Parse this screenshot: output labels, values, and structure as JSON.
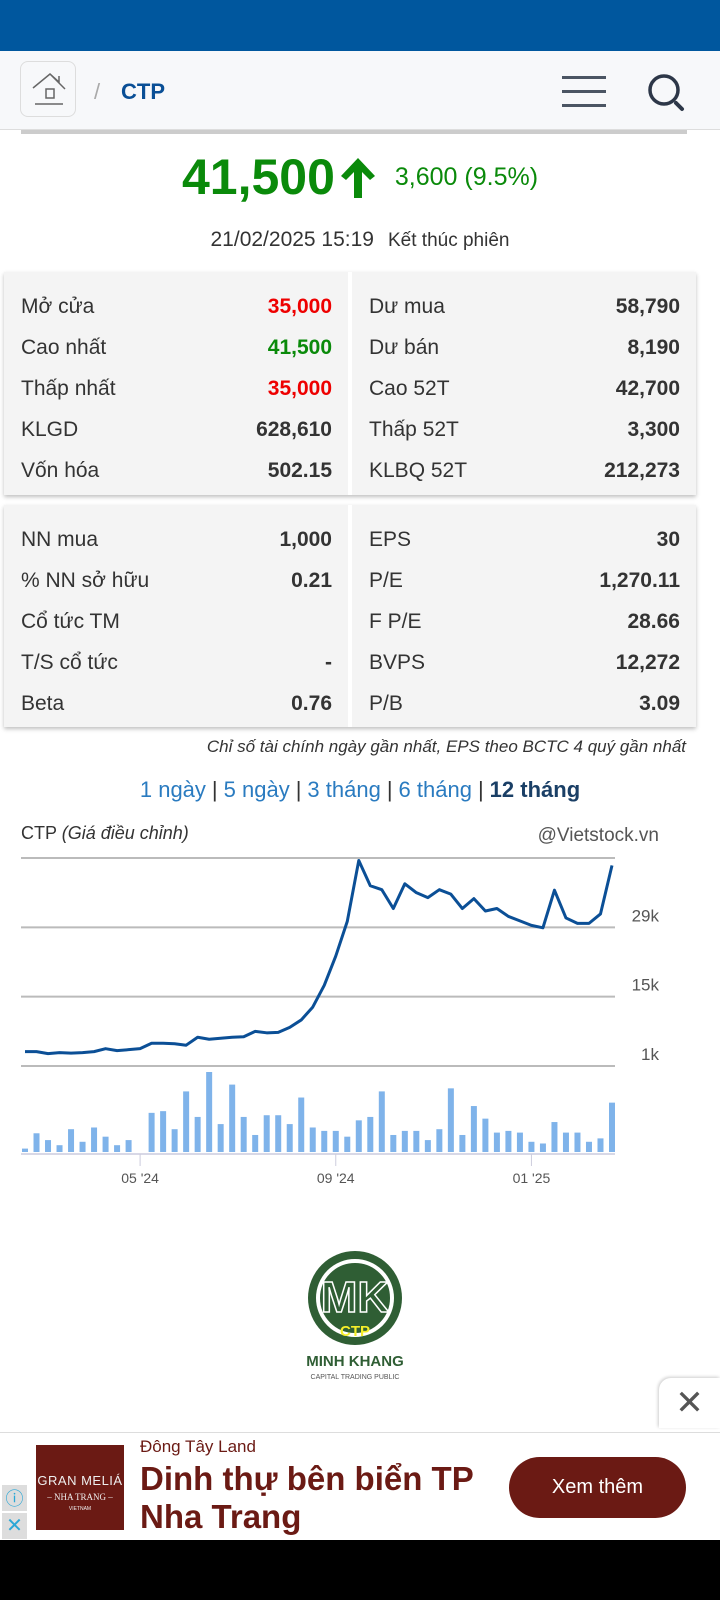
{
  "header": {
    "breadcrumb_sep": "/",
    "symbol": "CTP"
  },
  "quote": {
    "price": "41,500",
    "change": "3,600 (9.5%)",
    "datetime": "21/02/2025 15:19",
    "status": "Kết thúc phiên",
    "up_color": "#0a8a0a"
  },
  "stats1": {
    "left": [
      {
        "label": "Mở cửa",
        "value": "35,000",
        "color": "red"
      },
      {
        "label": "Cao nhất",
        "value": "41,500",
        "color": "green"
      },
      {
        "label": "Thấp nhất",
        "value": "35,000",
        "color": "red"
      },
      {
        "label": "KLGD",
        "value": "628,610"
      },
      {
        "label": "Vốn hóa",
        "value": "502.15"
      }
    ],
    "right": [
      {
        "label": "Dư mua",
        "value": "58,790"
      },
      {
        "label": "Dư bán",
        "value": "8,190"
      },
      {
        "label": "Cao 52T",
        "value": "42,700"
      },
      {
        "label": "Thấp 52T",
        "value": "3,300"
      },
      {
        "label": "KLBQ 52T",
        "value": "212,273"
      }
    ]
  },
  "stats2": {
    "left": [
      {
        "label": "NN mua",
        "value": "1,000"
      },
      {
        "label": "% NN sở hữu",
        "value": "0.21"
      },
      {
        "label": "Cổ tức TM",
        "value": ""
      },
      {
        "label": "T/S cổ tức",
        "value": "-"
      },
      {
        "label": "Beta",
        "value": "0.76"
      }
    ],
    "right": [
      {
        "label": "EPS",
        "value": "30"
      },
      {
        "label": "P/E",
        "value": "1,270.11"
      },
      {
        "label": "F P/E",
        "value": "28.66"
      },
      {
        "label": "BVPS",
        "value": "12,272"
      },
      {
        "label": "P/B",
        "value": "3.09"
      }
    ]
  },
  "note": "Chỉ số tài chính ngày gần nhất, EPS theo BCTC 4 quý gần nhất",
  "periods": {
    "items": [
      "1 ngày",
      "5 ngày",
      "3 tháng",
      "6 tháng",
      "12 tháng"
    ],
    "sep": "|",
    "active": 4
  },
  "chart_data": {
    "type": "line",
    "title": "CTP",
    "subtitle": "(Giá điều chỉnh)",
    "source": "@Vietstock.vn",
    "y_ticks": [
      "29k",
      "15k",
      "1k"
    ],
    "y_tick_values": [
      29000,
      15000,
      1000
    ],
    "ylim": [
      1000,
      43000
    ],
    "x_ticks": [
      "05 '24",
      "09 '24",
      "01 '25"
    ],
    "x_tick_index": [
      10,
      27,
      44
    ],
    "price": [
      3900,
      3900,
      3500,
      3700,
      3600,
      3700,
      3900,
      4500,
      4100,
      4300,
      4500,
      5600,
      5600,
      5500,
      5200,
      6800,
      6400,
      6600,
      6800,
      6900,
      8000,
      7700,
      7800,
      8800,
      10300,
      12900,
      17300,
      23200,
      30200,
      42500,
      37400,
      36600,
      32800,
      37800,
      36000,
      35000,
      36600,
      35700,
      32800,
      34800,
      32300,
      32800,
      31200,
      30300,
      29400,
      28900,
      36500,
      30900,
      29800,
      29800,
      31700,
      41500
    ],
    "volume_relative": [
      10,
      55,
      35,
      20,
      67,
      30,
      72,
      45,
      20,
      35,
      0,
      115,
      120,
      67,
      178,
      103,
      235,
      82,
      198,
      103,
      50,
      108,
      108,
      82,
      160,
      72,
      62,
      62,
      45,
      93,
      103,
      178,
      50,
      62,
      62,
      35,
      67,
      187,
      50,
      135,
      98,
      57,
      62,
      57,
      30,
      25,
      88,
      57,
      57,
      30,
      40,
      145
    ],
    "line_color": "#0b4f96",
    "bar_color": "#7fb3ea"
  },
  "logo": {
    "text": "MK",
    "sub": "CTP",
    "name": "MINH KHANG",
    "tagline": "CAPITAL TRADING PUBLIC"
  },
  "ad": {
    "close": "✕",
    "image_brand": "GRAN MELIÁ",
    "image_sub": "– NHA TRANG –",
    "image_country": "VIETNAM",
    "source": "Đông Tây Land",
    "title": "Dinh thự bên biển TP Nha Trang",
    "cta": "Xem thêm",
    "info": "ⓘ",
    "x": "✕"
  }
}
